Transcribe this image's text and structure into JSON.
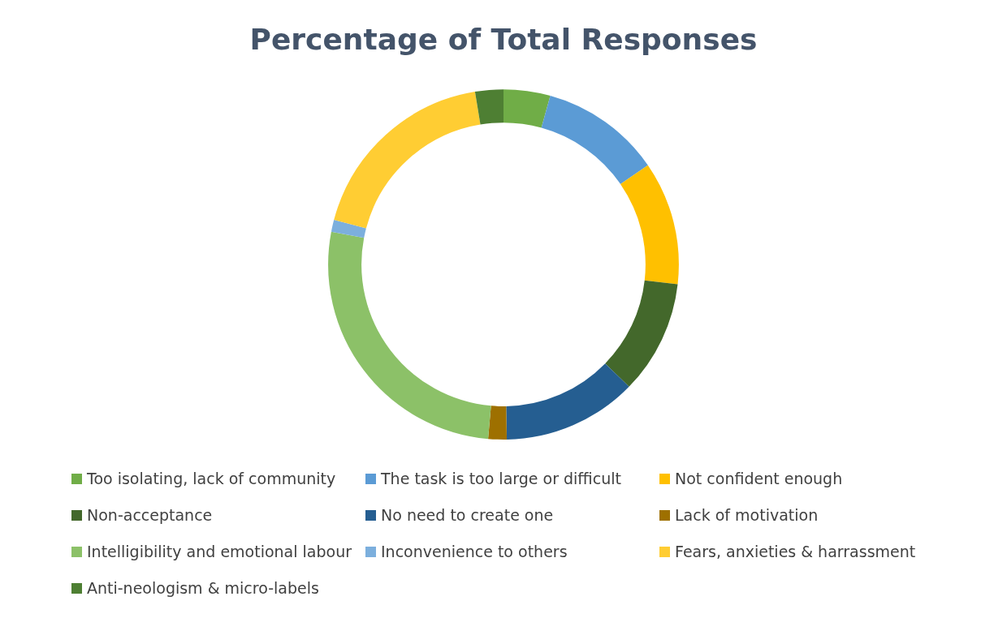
{
  "chart_data": {
    "type": "donut",
    "title": "Percentage of Total Responses",
    "categories": [
      "Too isolating, lack of community",
      "The task is too large or difficult",
      "Not confident enough",
      "Non-acceptance",
      "No need to create one",
      "Lack of motivation",
      "Intelligibility and emotional labour",
      "Inconvenience to others",
      "Fears, anxieties & harrassment",
      "Anti-neologism & micro-labels"
    ],
    "values": [
      4.3,
      11.1,
      11.4,
      10.5,
      12.4,
      1.7,
      26.6,
      1.1,
      18.3,
      2.6
    ],
    "colors": [
      "#70ad47",
      "#5b9bd5",
      "#ffc000",
      "#43682b",
      "#255e91",
      "#9e7000",
      "#8cc168",
      "#7cafdd",
      "#ffcd33",
      "#4e7f33"
    ],
    "legend": "bottom"
  }
}
